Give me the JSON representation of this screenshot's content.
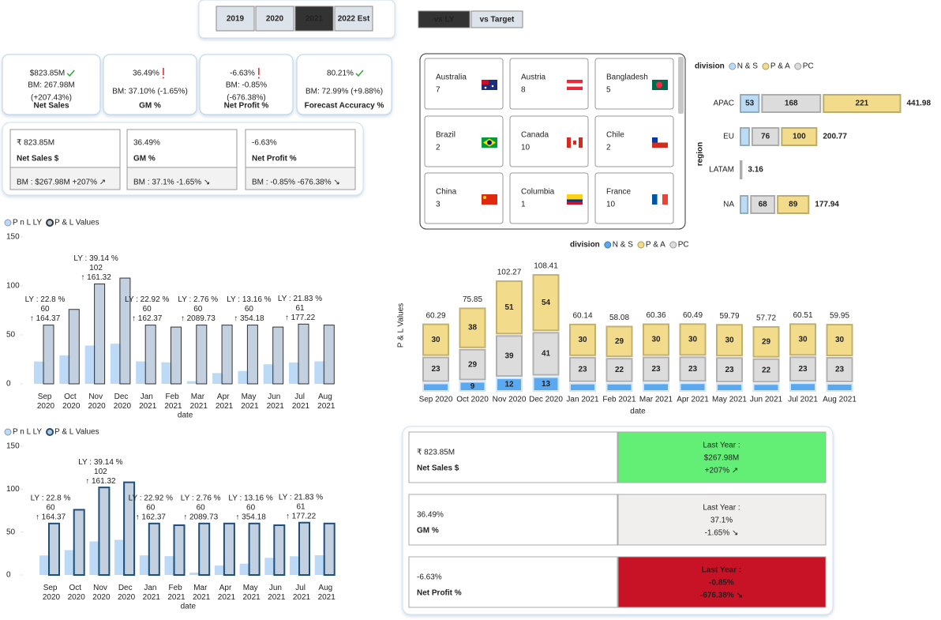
{
  "controls": {
    "years": [
      "2019",
      "2020",
      "2021",
      "2022 Est"
    ],
    "selected_year": "2021",
    "compare": [
      "vs LY",
      "vs Target"
    ],
    "selected_compare": "vs LY"
  },
  "kpi_cards": [
    {
      "value": "$823.85M",
      "status": "good",
      "benchmark": "BM: 267.98M",
      "change": "(+207.43%)",
      "label": "Net Sales"
    },
    {
      "value": "36.49%",
      "status": "bad",
      "benchmark": "BM: 37.10% (-1.65%)",
      "label": "GM %"
    },
    {
      "value": "-6.63%",
      "status": "bad",
      "benchmark": "BM: -0.85%",
      "change": "(-676.38%)",
      "label": "Net Profit %"
    },
    {
      "value": "80.21%",
      "status": "good",
      "benchmark": "BM: 72.99% (+9.88%)",
      "label": "Forecast Accuracy %"
    }
  ],
  "summary_cards": [
    {
      "value": "₹ 823.85M",
      "label": "Net Sales $",
      "benchmark": "BM : $267.98M +207% ↗"
    },
    {
      "value": "36.49%",
      "label": "GM %",
      "benchmark": "BM : 37.1% -1.65% ↘"
    },
    {
      "value": "-6.63%",
      "label": "Net Profit %",
      "benchmark": "BM : -0.85% -676.38% ↘"
    }
  ],
  "countries": [
    {
      "name": "Australia",
      "count": 7
    },
    {
      "name": "Austria",
      "count": 8
    },
    {
      "name": "Bangladesh",
      "count": 5
    },
    {
      "name": "Brazil",
      "count": 2
    },
    {
      "name": "Canada",
      "count": 10
    },
    {
      "name": "Chile",
      "count": 2
    },
    {
      "name": "China",
      "count": 3
    },
    {
      "name": "Columbia",
      "count": 1
    },
    {
      "name": "France",
      "count": 10
    }
  ],
  "comparison_cards": [
    {
      "value": "₹ 823.85M",
      "label": "Net Sales $",
      "title": "Last Year :",
      "last_year": "$267.98M",
      "change": "+207% ↗",
      "status": "good"
    },
    {
      "value": "36.49%",
      "label": "GM %",
      "title": "Last Year :",
      "last_year": "37.1%",
      "change": "-1.65% ↘",
      "status": "neutral"
    },
    {
      "value": "-6.63%",
      "label": "Net Profit %",
      "title": "Last Year :",
      "last_year": "-0.85%",
      "change": "-676.38% ↘",
      "status": "bad"
    }
  ],
  "chart_data": [
    {
      "type": "bar",
      "x_label": "date",
      "categories": [
        "Sep 2020",
        "Oct 2020",
        "Nov 2020",
        "Dec 2020",
        "Jan 2021",
        "Feb 2021",
        "Mar 2021",
        "Apr 2021",
        "May 2021",
        "Jun 2021",
        "Jul 2021",
        "Aug 2021"
      ],
      "series": [
        {
          "name": "P n L LY",
          "color": "#bcdaf6",
          "values": [
            22.8,
            29,
            39.14,
            41,
            22.92,
            22,
            2.76,
            11,
            13.16,
            20,
            21.83,
            23
          ],
          "value_labels": [
            "LY : 22.8 %",
            null,
            "LY : 39.14 %",
            null,
            "LY : 22.92 %",
            null,
            "LY : 2.76 %",
            null,
            "LY : 13.16 %",
            null,
            "LY : 21.83 %",
            null
          ]
        },
        {
          "name": "P & L Values",
          "color": "#b7c8d9",
          "edge": "#333333",
          "values": [
            60,
            76,
            102,
            108,
            60,
            58,
            60,
            60,
            60,
            58,
            61,
            60
          ]
        }
      ],
      "change_labels": [
        "↑ 164.37",
        null,
        "↑ 161.32",
        null,
        "↑ 162.37",
        null,
        "↑ 2089.73",
        null,
        "↑ 354.18",
        null,
        "↑ 177.22",
        null
      ],
      "ylim": [
        0,
        150
      ],
      "yticks": [
        0,
        50,
        100,
        150
      ]
    },
    {
      "type": "bar",
      "x_label": "date",
      "categories": [
        "Sep 2020",
        "Oct 2020",
        "Nov 2020",
        "Dec 2020",
        "Jan 2021",
        "Feb 2021",
        "Mar 2021",
        "Apr 2021",
        "May 2021",
        "Jun 2021",
        "Jul 2021",
        "Aug 2021"
      ],
      "series": [
        {
          "name": "P n L LY",
          "color": "#bcdaf6",
          "values": [
            22.8,
            29,
            39.14,
            41,
            22.92,
            22,
            2.76,
            11,
            13.16,
            20,
            21.83,
            23
          ],
          "value_labels": [
            "LY : 22.8 %",
            null,
            "LY : 39.14 %",
            null,
            "LY : 22.92 %",
            null,
            "LY : 2.76 %",
            null,
            "LY : 13.16 %",
            null,
            "LY : 21.83 %",
            null
          ]
        },
        {
          "name": "P & L Values",
          "color": "#b7c8d9",
          "edge": "#1f4e79",
          "values": [
            60,
            76,
            102,
            108,
            60,
            58,
            60,
            60,
            60,
            58,
            61,
            60
          ]
        }
      ],
      "change_labels": [
        "↑ 164.37",
        null,
        "↑ 161.32",
        null,
        "↑ 162.37",
        null,
        "↑ 2089.73",
        null,
        "↑ 354.18",
        null,
        "↑ 177.22",
        null
      ],
      "ylim": [
        0,
        150
      ],
      "yticks": [
        0,
        50,
        100,
        150
      ]
    },
    {
      "type": "hbar",
      "legend_title": "division",
      "y_label": "region",
      "categories": [
        "APAC",
        "EU",
        "LATAM",
        "NA"
      ],
      "series": [
        {
          "name": "N & S",
          "color": "#bcdcf5",
          "values": [
            53,
            24.77,
            null,
            20.94
          ]
        },
        {
          "name": "P & A",
          "color": "#f2dc8c",
          "values": [
            221,
            100,
            null,
            89
          ]
        },
        {
          "name": "PC",
          "color": "#dcdcdc",
          "values": [
            168,
            76,
            3.16,
            68
          ]
        }
      ],
      "totals": [
        441.98,
        200.77,
        3.16,
        177.94
      ]
    },
    {
      "type": "column",
      "legend_title": "division",
      "y_label": "P & L Values",
      "x_label": "date",
      "categories": [
        "Sep 2020",
        "Oct 2020",
        "Nov 2020",
        "Dec 2020",
        "Jan 2021",
        "Feb 2021",
        "Mar 2021",
        "Apr 2021",
        "May 2021",
        "Jun 2021",
        "Jul 2021",
        "Aug 2021"
      ],
      "series": [
        {
          "name": "N & S",
          "color": "#5aa9f0",
          "values": [
            7.29,
            8.85,
            12.27,
            13.41,
            7.14,
            7.08,
            7.36,
            7.49,
            6.79,
            6.72,
            7.51,
            6.95
          ],
          "value_labels": [
            null,
            "9",
            "12",
            "13",
            null,
            null,
            null,
            null,
            null,
            null,
            null,
            null
          ]
        },
        {
          "name": "P & A",
          "color": "#f2dc8c",
          "values": [
            30,
            38,
            51,
            54,
            30,
            29,
            30,
            30,
            30,
            29,
            30,
            30
          ]
        },
        {
          "name": "PC",
          "color": "#dcdcdc",
          "values": [
            23,
            29,
            39,
            41,
            23,
            22,
            23,
            23,
            23,
            22,
            23,
            23
          ]
        }
      ],
      "totals": [
        60.29,
        75.85,
        102.27,
        108.41,
        60.14,
        58.08,
        60.36,
        60.49,
        59.79,
        57.72,
        60.51,
        59.95
      ]
    }
  ]
}
